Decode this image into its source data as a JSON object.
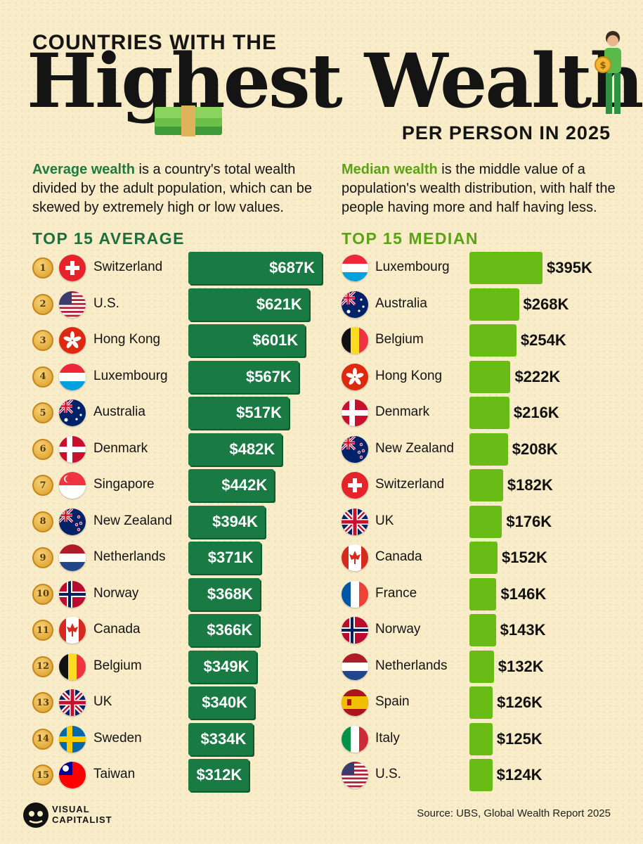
{
  "header": {
    "kicker": "COUNTRIES WITH THE",
    "title": "Highest Wealth",
    "subtitle": "PER PERSON IN 2025"
  },
  "definitions": {
    "average_term": "Average wealth",
    "average_text": " is a country's total wealth divided by the adult population, which can be skewed by extremely high or low values.",
    "median_term": "Median wealth",
    "median_text": " is the middle value of a population's wealth distribution, with half the people having more and half having less."
  },
  "colors": {
    "background": "#f9ecc9",
    "average_bar": "#1a7a43",
    "median_bar": "#69bc16",
    "average_heading": "#1f6e3d",
    "median_heading": "#5aa314"
  },
  "chart_data": [
    {
      "type": "bar",
      "title": "TOP 15 AVERAGE",
      "unit": "K",
      "ranks": [
        "1",
        "2",
        "3",
        "4",
        "5",
        "6",
        "7",
        "8",
        "9",
        "10",
        "11",
        "12",
        "13",
        "14",
        "15"
      ],
      "categories": [
        "Switzerland",
        "U.S.",
        "Hong Kong",
        "Luxembourg",
        "Australia",
        "Denmark",
        "Singapore",
        "New Zealand",
        "Netherlands",
        "Norway",
        "Canada",
        "Belgium",
        "UK",
        "Sweden",
        "Taiwan"
      ],
      "flags": [
        "ch",
        "us",
        "hk",
        "lu",
        "au",
        "dk",
        "sg",
        "nz",
        "nl",
        "no",
        "ca",
        "be",
        "uk",
        "se",
        "tw"
      ],
      "values": [
        687,
        621,
        601,
        567,
        517,
        482,
        442,
        394,
        371,
        368,
        366,
        349,
        340,
        334,
        312
      ],
      "labels": [
        "$687K",
        "$621K",
        "$601K",
        "$567K",
        "$517K",
        "$482K",
        "$442K",
        "$394K",
        "$371K",
        "$368K",
        "$366K",
        "$349K",
        "$340K",
        "$334K",
        "$312K"
      ]
    },
    {
      "type": "bar",
      "title": "TOP 15 MEDIAN",
      "unit": "K",
      "categories": [
        "Luxembourg",
        "Australia",
        "Belgium",
        "Hong Kong",
        "Denmark",
        "New Zealand",
        "Switzerland",
        "UK",
        "Canada",
        "France",
        "Norway",
        "Netherlands",
        "Spain",
        "Italy",
        "U.S."
      ],
      "flags": [
        "lu",
        "au",
        "be",
        "hk",
        "dk",
        "nz",
        "ch",
        "uk",
        "ca",
        "fr",
        "no",
        "nl",
        "es",
        "it",
        "us"
      ],
      "values": [
        395,
        268,
        254,
        222,
        216,
        208,
        182,
        176,
        152,
        146,
        143,
        132,
        126,
        125,
        124
      ],
      "labels": [
        "$395K",
        "$268K",
        "$254K",
        "$222K",
        "$216K",
        "$208K",
        "$182K",
        "$176K",
        "$152K",
        "$146K",
        "$143K",
        "$132K",
        "$126K",
        "$125K",
        "$124K"
      ]
    }
  ],
  "footer": {
    "source": "Source: UBS, Global Wealth Report 2025",
    "logo_line1": "VISUAL",
    "logo_line2": "CAPITALIST"
  }
}
